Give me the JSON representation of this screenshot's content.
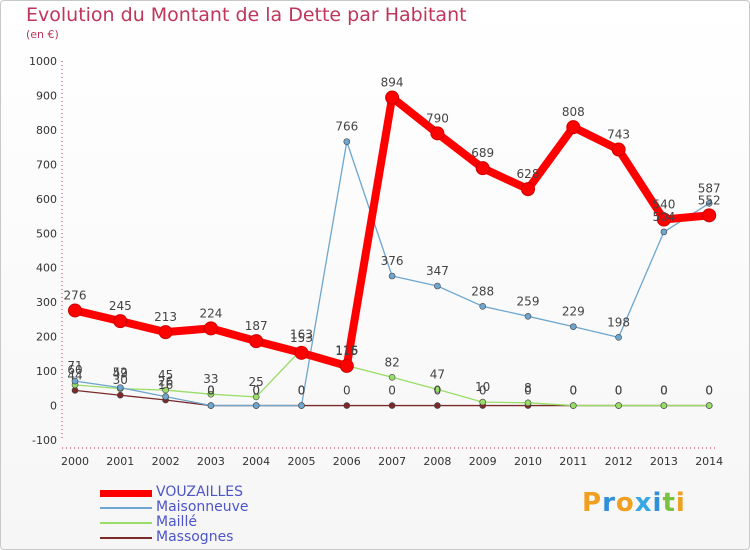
{
  "header": {
    "title": "Evolution du Montant de la Dette par Habitant",
    "subtitle": "(en €)"
  },
  "logo": {
    "letters": [
      "P",
      "r",
      "o",
      "x",
      "i",
      "t",
      "i"
    ],
    "colors": [
      "#f0a020",
      "#2f8fd8",
      "#f0a020",
      "#3aa8e0",
      "#2f8fd8",
      "#7ac142",
      "#f0a020"
    ]
  },
  "chart_data": {
    "type": "line",
    "title": "Evolution du Montant de la Dette par Habitant",
    "ylabel": "(en €)",
    "xlabel": "",
    "categories": [
      "2000",
      "2001",
      "2002",
      "2003",
      "2004",
      "2005",
      "2006",
      "2007",
      "2008",
      "2009",
      "2010",
      "2011",
      "2012",
      "2013",
      "2014"
    ],
    "ylim": [
      -100,
      1000
    ],
    "yticks": [
      -100,
      0,
      100,
      200,
      300,
      400,
      500,
      600,
      700,
      800,
      900,
      1000
    ],
    "grid": false,
    "legend_position": "bottom-left",
    "series": [
      {
        "name": "VOUZAILLES",
        "color": "#ff0000",
        "values": [
          276,
          245,
          213,
          224,
          187,
          153,
          115,
          894,
          790,
          689,
          628,
          808,
          743,
          540,
          552
        ]
      },
      {
        "name": "Maisonneuve",
        "color": "#6ea6cf",
        "values": [
          71,
          52,
          26,
          0,
          0,
          0,
          766,
          376,
          347,
          288,
          259,
          229,
          198,
          504,
          587
        ]
      },
      {
        "name": "Maillé",
        "color": "#99dd66",
        "values": [
          60,
          49,
          45,
          33,
          25,
          163,
          116,
          82,
          47,
          10,
          8,
          0,
          0,
          0,
          0
        ]
      },
      {
        "name": "Massognes",
        "color": "#7a2a2a",
        "values": [
          44,
          30,
          16,
          0,
          0,
          0,
          0,
          0,
          0,
          0,
          0,
          0,
          0,
          0,
          0
        ]
      }
    ]
  }
}
